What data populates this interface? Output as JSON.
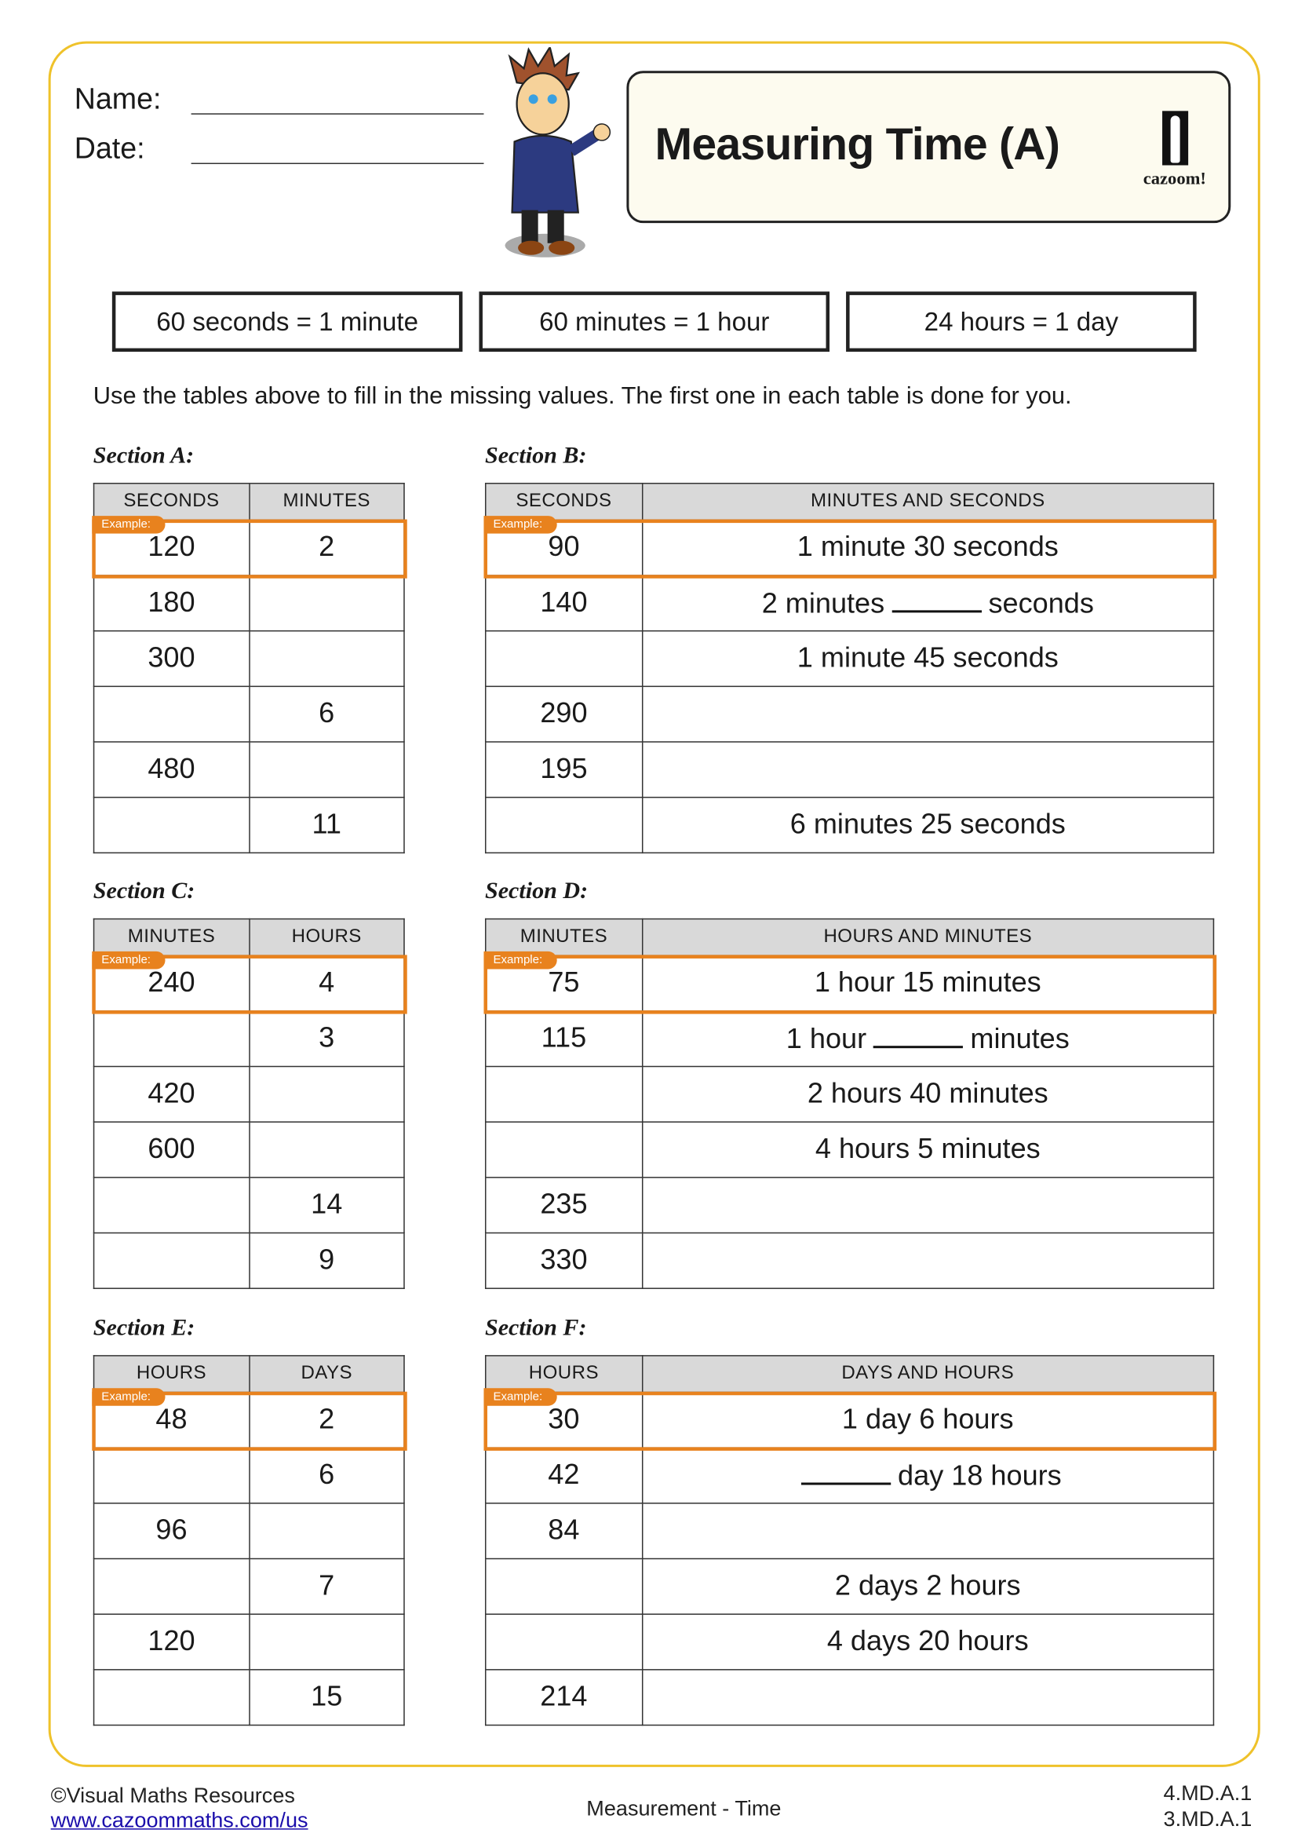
{
  "header": {
    "name_label": "Name:",
    "date_label": "Date:",
    "title": "Measuring Time (A)",
    "logo_text": "cazoom!"
  },
  "facts": [
    "60 seconds = 1 minute",
    "60 minutes = 1 hour",
    "24 hours = 1 day"
  ],
  "instruction": "Use the tables above to fill in the missing values. The first one in each table is done for you.",
  "example_label": "Example:",
  "colors": {
    "border": "#efc22a",
    "example": "#e8821e",
    "header_bg": "#d9d9d9"
  },
  "sections": [
    {
      "label": "Section A:",
      "headers": [
        "SECONDS",
        "MINUTES"
      ],
      "rows": [
        [
          "120",
          "2"
        ],
        [
          "180",
          ""
        ],
        [
          "300",
          ""
        ],
        [
          "",
          "6"
        ],
        [
          "480",
          ""
        ],
        [
          "",
          "11"
        ]
      ]
    },
    {
      "label": "Section B:",
      "headers": [
        "SECONDS",
        "MINUTES AND SECONDS"
      ],
      "rows": [
        [
          "90",
          "1 minute 30 seconds"
        ],
        [
          "140",
          {
            "pre": "2 minutes",
            "post": "seconds"
          }
        ],
        [
          "",
          "1 minute 45 seconds"
        ],
        [
          "290",
          ""
        ],
        [
          "195",
          ""
        ],
        [
          "",
          "6 minutes 25 seconds"
        ]
      ]
    },
    {
      "label": "Section C:",
      "headers": [
        "MINUTES",
        "HOURS"
      ],
      "rows": [
        [
          "240",
          "4"
        ],
        [
          "",
          "3"
        ],
        [
          "420",
          ""
        ],
        [
          "600",
          ""
        ],
        [
          "",
          "14"
        ],
        [
          "",
          "9"
        ]
      ]
    },
    {
      "label": "Section D:",
      "headers": [
        "MINUTES",
        "HOURS AND MINUTES"
      ],
      "rows": [
        [
          "75",
          "1 hour 15 minutes"
        ],
        [
          "115",
          {
            "pre": "1 hour",
            "post": "minutes"
          }
        ],
        [
          "",
          "2 hours  40 minutes"
        ],
        [
          "",
          "4 hours 5 minutes"
        ],
        [
          "235",
          ""
        ],
        [
          "330",
          ""
        ]
      ]
    },
    {
      "label": "Section E:",
      "headers": [
        "HOURS",
        "DAYS"
      ],
      "rows": [
        [
          "48",
          "2"
        ],
        [
          "",
          "6"
        ],
        [
          "96",
          ""
        ],
        [
          "",
          "7"
        ],
        [
          "120",
          ""
        ],
        [
          "",
          "15"
        ]
      ]
    },
    {
      "label": "Section F:",
      "headers": [
        "HOURS",
        "DAYS AND HOURS"
      ],
      "rows": [
        [
          "30",
          "1 day 6 hours"
        ],
        [
          "42",
          {
            "pre": "",
            "post": "day 18 hours"
          }
        ],
        [
          "84",
          ""
        ],
        [
          "",
          "2 days 2 hours"
        ],
        [
          "",
          "4 days 20 hours"
        ],
        [
          "214",
          ""
        ]
      ]
    }
  ],
  "footer": {
    "copyright": "©Visual Maths Resources",
    "link": "www.cazoommaths.com/us",
    "topic": "Measurement - Time",
    "standards": [
      "4.MD.A.1",
      "3.MD.A.1"
    ]
  }
}
